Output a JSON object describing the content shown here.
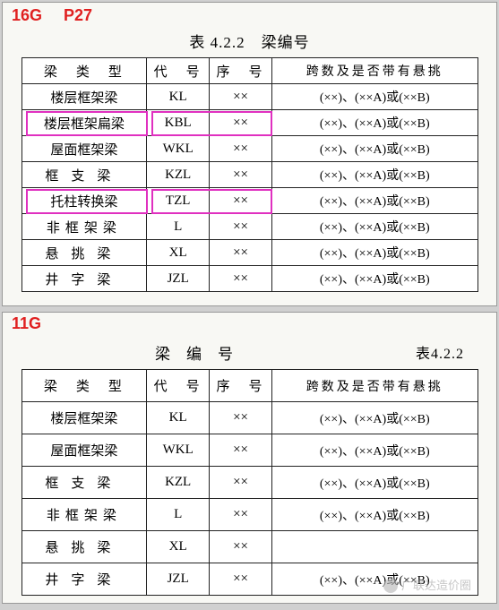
{
  "labels": {
    "top_left": "16G",
    "top_page": "P27",
    "bot_left": "11G"
  },
  "table1": {
    "caption": "表 4.2.2　梁编号",
    "headers": {
      "type": "梁　类　型",
      "code": "代　号",
      "seq": "序　号",
      "note": "跨数及是否带有悬挑"
    },
    "rows": [
      {
        "type": "楼层框架梁",
        "code": "KL",
        "seq": "××",
        "note": "(××)、(××A)或(××B)"
      },
      {
        "type": "楼层框架扁梁",
        "code": "KBL",
        "seq": "××",
        "note": "(××)、(××A)或(××B)",
        "highlight": true
      },
      {
        "type": "屋面框架梁",
        "code": "WKL",
        "seq": "××",
        "note": "(××)、(××A)或(××B)"
      },
      {
        "type": "框支梁",
        "code": "KZL",
        "seq": "××",
        "note": "(××)、(××A)或(××B)",
        "spaced": "s3"
      },
      {
        "type": "托柱转换梁",
        "code": "TZL",
        "seq": "××",
        "note": "(××)、(××A)或(××B)",
        "highlight": true
      },
      {
        "type": "非框架梁",
        "code": "L",
        "seq": "××",
        "note": "(××)、(××A)或(××B)",
        "spaced": "s2"
      },
      {
        "type": "悬挑梁",
        "code": "XL",
        "seq": "××",
        "note": "(××)、(××A)或(××B)",
        "spaced": "s3"
      },
      {
        "type": "井字梁",
        "code": "JZL",
        "seq": "××",
        "note": "(××)、(××A)或(××B)",
        "spaced": "s3"
      }
    ]
  },
  "table2": {
    "caption_text": "梁编号",
    "table_no": "表4.2.2",
    "headers": {
      "type": "梁　类　型",
      "code": "代　号",
      "seq": "序　号",
      "note": "跨数及是否带有悬挑"
    },
    "rows": [
      {
        "type": "楼层框架梁",
        "code": "KL",
        "seq": "××",
        "note": "(××)、(××A)或(××B)"
      },
      {
        "type": "屋面框架梁",
        "code": "WKL",
        "seq": "××",
        "note": "(××)、(××A)或(××B)"
      },
      {
        "type": "框支梁",
        "code": "KZL",
        "seq": "××",
        "note": "(××)、(××A)或(××B)",
        "spaced": "s3"
      },
      {
        "type": "非框架梁",
        "code": "L",
        "seq": "××",
        "note": "(××)、(××A)或(××B)",
        "spaced": "s2"
      },
      {
        "type": "悬挑梁",
        "code": "XL",
        "seq": "××",
        "note": "",
        "spaced": "s3"
      },
      {
        "type": "井字梁",
        "code": "JZL",
        "seq": "××",
        "note": "(××)、(××A)或(××B)",
        "spaced": "s3"
      }
    ]
  },
  "watermark": "广联达造价圈"
}
